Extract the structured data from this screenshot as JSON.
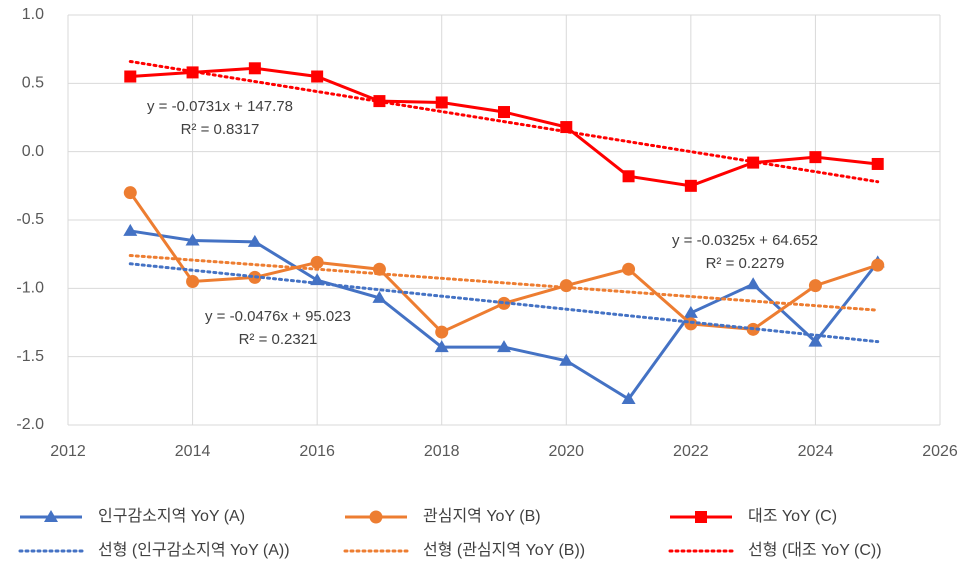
{
  "chart_data": {
    "type": "line",
    "x": [
      2013,
      2014,
      2015,
      2016,
      2017,
      2018,
      2019,
      2020,
      2021,
      2022,
      2023,
      2024,
      2025
    ],
    "series": [
      {
        "name": "인구감소지역 YoY (A)",
        "color": "#4472c4",
        "marker": "triangle",
        "values": [
          -0.58,
          -0.65,
          -0.66,
          -0.94,
          -1.07,
          -1.43,
          -1.43,
          -1.53,
          -1.81,
          -1.18,
          -0.97,
          -1.39,
          -0.81
        ]
      },
      {
        "name": "관심지역 YoY (B)",
        "color": "#ed7d31",
        "marker": "circle",
        "values": [
          -0.3,
          -0.95,
          -0.92,
          -0.81,
          -0.86,
          -1.32,
          -1.11,
          -0.98,
          -0.86,
          -1.26,
          -1.3,
          -0.98,
          -0.83
        ]
      },
      {
        "name": "대조 YoY (C)",
        "color": "#ff0000",
        "marker": "square",
        "values": [
          0.55,
          0.58,
          0.61,
          0.55,
          0.37,
          0.36,
          0.29,
          0.18,
          -0.18,
          -0.25,
          -0.08,
          -0.04,
          -0.09
        ]
      },
      {
        "name": "선형 (인구감소지역 YoY (A))",
        "color": "#4472c4",
        "dotted": true,
        "x": [
          2013,
          2025
        ],
        "values": [
          -0.82,
          -1.39
        ]
      },
      {
        "name": "선형 (관심지역 YoY (B))",
        "color": "#ed7d31",
        "dotted": true,
        "x": [
          2013,
          2025
        ],
        "values": [
          -0.76,
          -1.16
        ]
      },
      {
        "name": "선형 (대조 YoY (C))",
        "color": "#ff0000",
        "dotted": true,
        "x": [
          2013,
          2025
        ],
        "values": [
          0.66,
          -0.22
        ]
      }
    ],
    "annotations": [
      {
        "lines": [
          "y = -0.0731x + 147.78",
          "R² = 0.8317"
        ]
      },
      {
        "lines": [
          "y = -0.0476x + 95.023",
          "R² = 0.2321"
        ]
      },
      {
        "lines": [
          "y = -0.0325x + 64.652",
          "R² = 0.2279"
        ]
      }
    ],
    "xlim": [
      2012,
      2026
    ],
    "xticks": [
      2012,
      2014,
      2016,
      2018,
      2020,
      2022,
      2024,
      2026
    ],
    "ylim": [
      -2.0,
      1.0
    ],
    "yticks": [
      {
        "value": -2.0,
        "label": "-2.0"
      },
      {
        "value": -1.5,
        "label": "-1.5"
      },
      {
        "value": -1.0,
        "label": "-1.0"
      },
      {
        "value": -0.5,
        "label": "-0.5"
      },
      {
        "value": 0.0,
        "label": "0.0"
      },
      {
        "value": 0.5,
        "label": "0.5"
      },
      {
        "value": 1.0,
        "label": "1.0"
      }
    ],
    "grid": true,
    "legend": "bottom"
  }
}
